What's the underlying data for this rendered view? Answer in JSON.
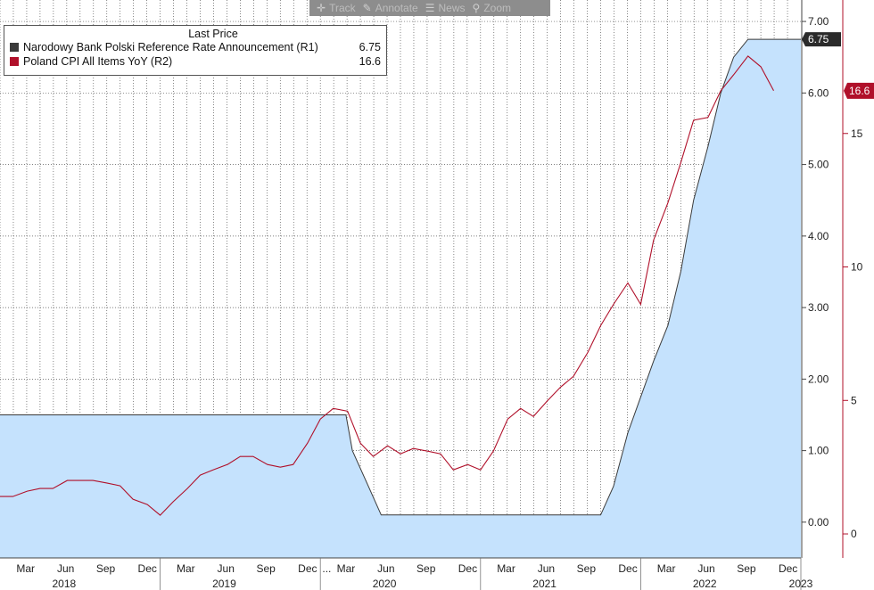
{
  "toolbar": {
    "items": [
      {
        "label": "Track",
        "icon": "crosshair-icon"
      },
      {
        "label": "Annotate",
        "icon": "pencil-icon"
      },
      {
        "label": "News",
        "icon": "news-icon"
      },
      {
        "label": "Zoom",
        "icon": "magnifier-icon"
      }
    ]
  },
  "legend": {
    "title": "Last Price",
    "entries": [
      {
        "name": "Narodowy Bank Polski Reference Rate Announcement  (R1)",
        "value": "6.75",
        "color": "#3a3a3a"
      },
      {
        "name": "Poland CPI All Items YoY  (R2)",
        "value": "16.6",
        "color": "#b0102a"
      }
    ]
  },
  "chart_data": {
    "type": "line",
    "x_ticks": [
      {
        "t": 2018.16,
        "label": "Mar"
      },
      {
        "t": 2018.41,
        "label": "Jun"
      },
      {
        "t": 2018.66,
        "label": "Sep"
      },
      {
        "t": 2018.92,
        "label": "Dec"
      },
      {
        "t": 2019.16,
        "label": "Mar"
      },
      {
        "t": 2019.41,
        "label": "Jun"
      },
      {
        "t": 2019.66,
        "label": "Sep"
      },
      {
        "t": 2019.92,
        "label": "Dec"
      },
      {
        "t": 2020.16,
        "label": "Mar"
      },
      {
        "t": 2020.41,
        "label": "Jun"
      },
      {
        "t": 2020.66,
        "label": "Sep"
      },
      {
        "t": 2020.92,
        "label": "Dec"
      },
      {
        "t": 2021.16,
        "label": "Mar"
      },
      {
        "t": 2021.41,
        "label": "Jun"
      },
      {
        "t": 2021.66,
        "label": "Sep"
      },
      {
        "t": 2021.92,
        "label": "Dec"
      },
      {
        "t": 2022.16,
        "label": "Mar"
      },
      {
        "t": 2022.41,
        "label": "Jun"
      },
      {
        "t": 2022.66,
        "label": "Sep"
      },
      {
        "t": 2022.92,
        "label": "Dec"
      }
    ],
    "x_break_marker": {
      "t": 2020.04,
      "label": "..."
    },
    "year_labels": [
      {
        "t": 2018.4,
        "label": "2018"
      },
      {
        "t": 2019.4,
        "label": "2019"
      },
      {
        "t": 2020.4,
        "label": "2020"
      },
      {
        "t": 2021.4,
        "label": "2021"
      },
      {
        "t": 2022.4,
        "label": "2022"
      },
      {
        "t": 2023.0,
        "label": "2023"
      }
    ],
    "xlim": [
      2018.0,
      2023.0
    ],
    "y1": {
      "lim": [
        -0.5,
        7.3
      ],
      "ticks": [
        "0.00",
        "1.00",
        "2.00",
        "3.00",
        "4.00",
        "5.00",
        "6.00",
        "7.00"
      ]
    },
    "y2": {
      "lim": [
        -0.9,
        20.0
      ],
      "ticks": [
        "0",
        "5",
        "10",
        "15"
      ]
    },
    "series": [
      {
        "name": "Narodowy Bank Polski Reference Rate Announcement  (R1)",
        "axis": "y1",
        "style": "area",
        "color": "#3a3a3a",
        "fill": "#c5e2fd",
        "last_label": "6.75",
        "points": [
          [
            2018.0,
            1.5
          ],
          [
            2020.16,
            1.5
          ],
          [
            2020.2,
            1.0
          ],
          [
            2020.3,
            0.5
          ],
          [
            2020.38,
            0.1
          ],
          [
            2021.75,
            0.1
          ],
          [
            2021.83,
            0.5
          ],
          [
            2021.92,
            1.25
          ],
          [
            2022.0,
            1.75
          ],
          [
            2022.08,
            2.25
          ],
          [
            2022.17,
            2.75
          ],
          [
            2022.25,
            3.5
          ],
          [
            2022.33,
            4.5
          ],
          [
            2022.42,
            5.25
          ],
          [
            2022.5,
            6.0
          ],
          [
            2022.58,
            6.5
          ],
          [
            2022.67,
            6.75
          ],
          [
            2023.0,
            6.75
          ]
        ]
      },
      {
        "name": "Poland CPI All Items YoY  (R2)",
        "axis": "y2",
        "style": "line",
        "color": "#b0102a",
        "last_label": "16.6",
        "points": [
          [
            2018.0,
            1.4
          ],
          [
            2018.08,
            1.4
          ],
          [
            2018.17,
            1.6
          ],
          [
            2018.25,
            1.7
          ],
          [
            2018.33,
            1.7
          ],
          [
            2018.42,
            2.0
          ],
          [
            2018.5,
            2.0
          ],
          [
            2018.58,
            2.0
          ],
          [
            2018.67,
            1.9
          ],
          [
            2018.75,
            1.8
          ],
          [
            2018.83,
            1.3
          ],
          [
            2018.92,
            1.1
          ],
          [
            2019.0,
            0.7
          ],
          [
            2019.08,
            1.2
          ],
          [
            2019.17,
            1.7
          ],
          [
            2019.25,
            2.2
          ],
          [
            2019.33,
            2.4
          ],
          [
            2019.42,
            2.6
          ],
          [
            2019.5,
            2.9
          ],
          [
            2019.58,
            2.9
          ],
          [
            2019.67,
            2.6
          ],
          [
            2019.75,
            2.5
          ],
          [
            2019.83,
            2.6
          ],
          [
            2019.92,
            3.4
          ],
          [
            2020.0,
            4.3
          ],
          [
            2020.08,
            4.7
          ],
          [
            2020.17,
            4.6
          ],
          [
            2020.25,
            3.4
          ],
          [
            2020.33,
            2.9
          ],
          [
            2020.42,
            3.3
          ],
          [
            2020.5,
            3.0
          ],
          [
            2020.58,
            3.2
          ],
          [
            2020.67,
            3.1
          ],
          [
            2020.75,
            3.0
          ],
          [
            2020.83,
            2.4
          ],
          [
            2020.92,
            2.6
          ],
          [
            2021.0,
            2.4
          ],
          [
            2021.08,
            3.1
          ],
          [
            2021.17,
            4.3
          ],
          [
            2021.25,
            4.7
          ],
          [
            2021.33,
            4.4
          ],
          [
            2021.42,
            5.0
          ],
          [
            2021.5,
            5.5
          ],
          [
            2021.58,
            5.9
          ],
          [
            2021.67,
            6.8
          ],
          [
            2021.75,
            7.8
          ],
          [
            2021.83,
            8.6
          ],
          [
            2021.92,
            9.4
          ],
          [
            2022.0,
            8.6
          ],
          [
            2022.08,
            11.0
          ],
          [
            2022.17,
            12.4
          ],
          [
            2022.25,
            13.9
          ],
          [
            2022.33,
            15.5
          ],
          [
            2022.42,
            15.6
          ],
          [
            2022.5,
            16.6
          ],
          [
            2022.58,
            17.2
          ],
          [
            2022.67,
            17.9
          ],
          [
            2022.75,
            17.5
          ],
          [
            2022.83,
            16.6
          ]
        ]
      }
    ]
  }
}
